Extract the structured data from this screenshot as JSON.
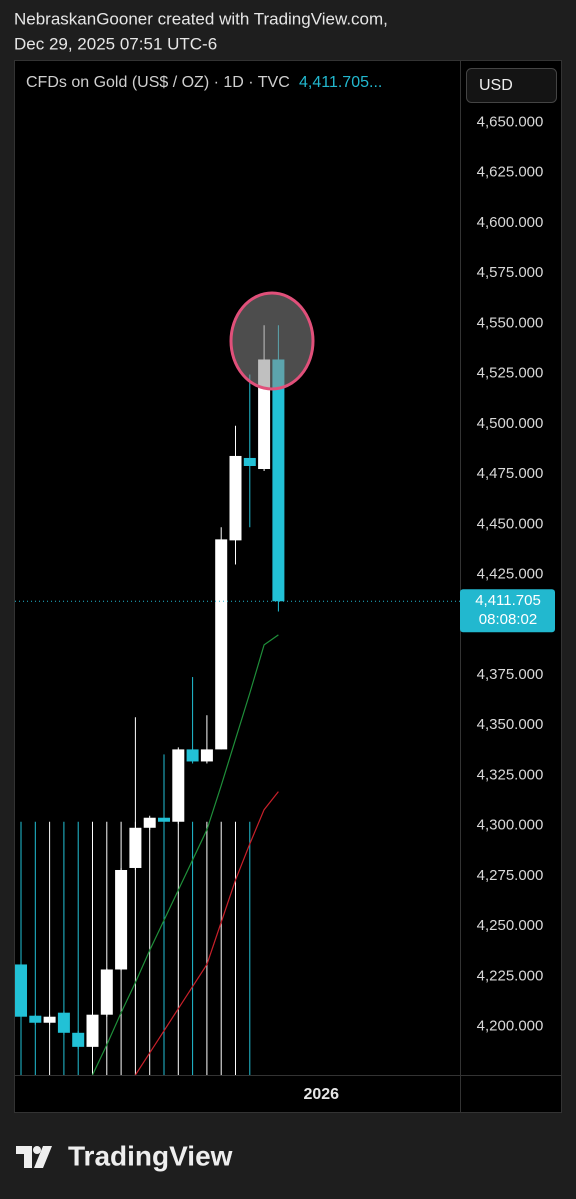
{
  "header": {
    "author_line": "NebraskanGooner created with TradingView.com,",
    "date_line": "Dec 29, 2025 07:51 UTC-6"
  },
  "footer": {
    "brand": "TradingView"
  },
  "chart_data": {
    "type": "candlestick",
    "title": "CFDs on Gold (US$ / OZ) · 1D · TVC",
    "legend_value": "4,411.705...",
    "currency": "USD",
    "up_color": "#ffffff",
    "down_color": "#22c1d6",
    "x": [
      0,
      1,
      2,
      3,
      4,
      5,
      6,
      7,
      8,
      9,
      10,
      11,
      12,
      13,
      14,
      15,
      16,
      17,
      18
    ],
    "open": [
      4231,
      4205.5,
      4202,
      4207,
      4197,
      4190,
      4206,
      4228.5,
      4279,
      4299,
      4304,
      4302,
      4338,
      4332,
      4338,
      4442,
      4483,
      4477.5,
      4532
    ],
    "high": [
      4232,
      4206,
      4206,
      4208,
      4198,
      4207,
      4229,
      4279,
      4354,
      4305,
      4335.5,
      4339,
      4374,
      4355,
      4448.5,
      4499,
      4524.5,
      4549,
      4549
    ],
    "low": [
      4204,
      4201,
      4201,
      4196,
      4189,
      4189,
      4205,
      4228,
      4278,
      4298,
      4301,
      4301,
      4331,
      4331,
      4338,
      4430,
      4448.5,
      4476.5,
      4406.6
    ],
    "close": [
      4205,
      4202,
      4205,
      4197,
      4190,
      4206,
      4228.5,
      4278,
      4299,
      4304,
      4302,
      4338,
      4332,
      4338,
      4442.5,
      4484,
      4479,
      4532,
      4411.705
    ],
    "marker_tops": [
      4302,
      4302,
      4302,
      4302,
      4302,
      4302,
      4302,
      4302,
      4302,
      4302,
      4302,
      4302,
      4302,
      4302,
      4302,
      4302,
      4302
    ],
    "series": [
      {
        "color": "#1f8f3a",
        "values": [
          null,
          null,
          null,
          null,
          null,
          4176,
          4191,
          4207,
          4222,
          4238,
          4253,
          4268,
          4283,
          4298,
          4320,
          4343,
          4366,
          4390,
          4395
        ]
      },
      {
        "color": "#c8202a",
        "values": [
          null,
          null,
          null,
          null,
          null,
          null,
          null,
          null,
          4176,
          4187,
          4198,
          4209,
          4220,
          4231,
          4252,
          4273,
          4291,
          4308,
          4317
        ]
      }
    ],
    "last_price": {
      "value": 4411.705,
      "label": "4,411.705",
      "countdown": "08:08:02",
      "color": "#22b8cf"
    },
    "xlim": [
      -0.42,
      30.7
    ],
    "xticks": [
      {
        "value": 21,
        "label": "2026"
      }
    ],
    "ylim": [
      4176,
      4681
    ],
    "yticks": [
      {
        "value": 4200,
        "label": "4,200.000"
      },
      {
        "value": 4225,
        "label": "4,225.000"
      },
      {
        "value": 4250,
        "label": "4,250.000"
      },
      {
        "value": 4275,
        "label": "4,275.000"
      },
      {
        "value": 4300,
        "label": "4,300.000"
      },
      {
        "value": 4325,
        "label": "4,325.000"
      },
      {
        "value": 4350,
        "label": "4,350.000"
      },
      {
        "value": 4375,
        "label": "4,375.000"
      },
      {
        "value": 4425,
        "label": "4,425.000"
      },
      {
        "value": 4450,
        "label": "4,450.000"
      },
      {
        "value": 4475,
        "label": "4,475.000"
      },
      {
        "value": 4500,
        "label": "4,500.000"
      },
      {
        "value": 4525,
        "label": "4,525.000"
      },
      {
        "value": 4550,
        "label": "4,550.000"
      },
      {
        "value": 4575,
        "label": "4,575.000"
      },
      {
        "value": 4600,
        "label": "4,600.000"
      },
      {
        "value": 4625,
        "label": "4,625.000"
      },
      {
        "value": 4650,
        "label": "4,650.000"
      }
    ]
  }
}
